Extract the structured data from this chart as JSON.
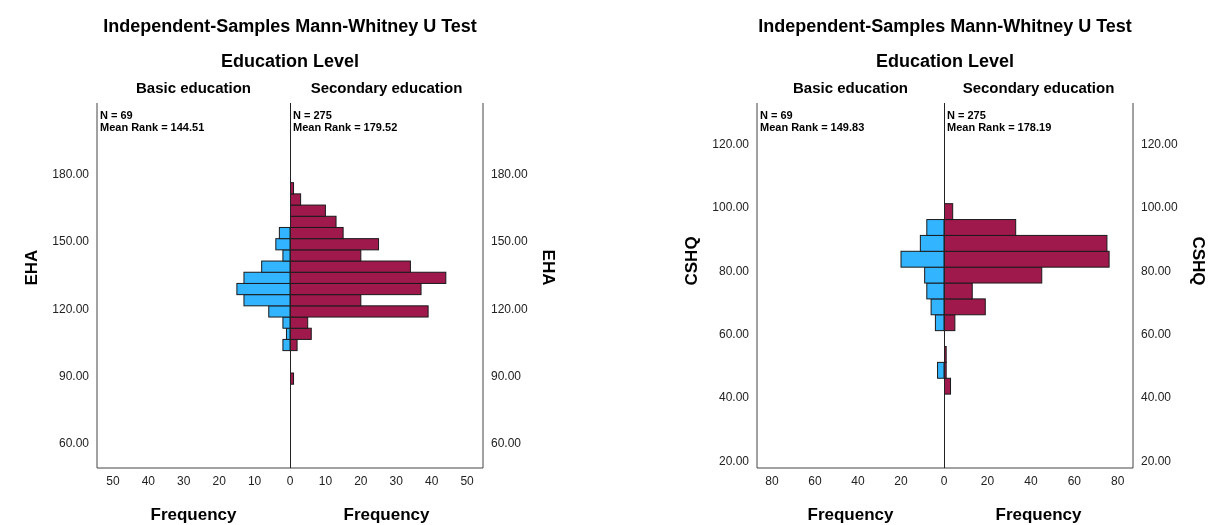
{
  "chart_data": [
    {
      "type": "histogram",
      "orientation": "horizontal",
      "title": "Independent-Samples Mann-Whitney U Test",
      "subtitle": "Education Level",
      "ylabel": "EHA",
      "xlabel": "Frequency",
      "bins": [
        86.3,
        91.3,
        96.3,
        101.3,
        106.3,
        111.3,
        116.3,
        121.3,
        126.3,
        131.3,
        136.3,
        141.3,
        146.3,
        151.3,
        156.3,
        161.3,
        166.3,
        171.3,
        176.3
      ],
      "series": [
        {
          "name": "Basic education",
          "color": "#33b4ff",
          "values": [
            0,
            0,
            0,
            2,
            1,
            2,
            6,
            13,
            15,
            13,
            8,
            2,
            4,
            3,
            0,
            0,
            0,
            0
          ]
        }
      ],
      "xlim": [
        54.5,
        0
      ],
      "xticks": [
        50,
        40,
        30,
        20,
        10,
        0
      ],
      "ylim": [
        48.7,
        211.7
      ],
      "yticks": [
        {
          "value": 60,
          "label": "60.00"
        },
        {
          "value": 90,
          "label": "90.00"
        },
        {
          "value": 120,
          "label": "120.00"
        },
        {
          "value": 150,
          "label": "150.00"
        },
        {
          "value": 180,
          "label": "180.00"
        }
      ],
      "annotations": [
        "N = 69",
        "Mean Rank = 144.51"
      ]
    },
    {
      "type": "histogram",
      "orientation": "horizontal",
      "ylabel": "EHA",
      "xlabel": "Frequency",
      "bins": [
        86.3,
        91.3,
        96.3,
        101.3,
        106.3,
        111.3,
        116.3,
        121.3,
        126.3,
        131.3,
        136.3,
        141.3,
        146.3,
        151.3,
        156.3,
        161.3,
        166.3,
        171.3,
        176.3
      ],
      "series": [
        {
          "name": "Secondary education",
          "color": "#a0194c",
          "values": [
            1,
            0,
            0,
            2,
            6,
            5,
            39,
            20,
            37,
            44,
            34,
            20,
            25,
            15,
            13,
            10,
            3,
            1
          ]
        }
      ],
      "xlim": [
        0,
        54.5
      ],
      "xticks": [
        10,
        20,
        30,
        40,
        50
      ],
      "ylim": [
        48.7,
        211.7
      ],
      "yticks": [
        {
          "value": 60,
          "label": "60.00"
        },
        {
          "value": 90,
          "label": "90.00"
        },
        {
          "value": 120,
          "label": "120.00"
        },
        {
          "value": 150,
          "label": "150.00"
        },
        {
          "value": 180,
          "label": "180.00"
        }
      ],
      "annotations": [
        "N = 275",
        "Mean Rank = 179.52"
      ]
    },
    {
      "type": "histogram",
      "orientation": "horizontal",
      "title": "Independent-Samples Mann-Whitney U Test",
      "subtitle": "Education Level",
      "ylabel": "CSHQ",
      "xlabel": "Frequency",
      "bins": [
        41,
        46,
        51,
        56,
        61,
        66,
        71,
        76,
        81,
        86,
        91,
        96,
        101
      ],
      "series": [
        {
          "name": "Basic education",
          "color": "#33b4ff",
          "values": [
            0,
            3,
            0,
            0,
            4,
            6,
            8,
            9,
            20,
            11,
            8,
            0
          ]
        }
      ],
      "xlim": [
        87,
        0
      ],
      "xticks": [
        80,
        60,
        40,
        20,
        0
      ],
      "ylim": [
        17.7,
        132.7
      ],
      "yticks": [
        {
          "value": 20,
          "label": "20.00"
        },
        {
          "value": 40,
          "label": "40.00"
        },
        {
          "value": 60,
          "label": "60.00"
        },
        {
          "value": 80,
          "label": "80.00"
        },
        {
          "value": 100,
          "label": "100.00"
        },
        {
          "value": 120,
          "label": "120.00"
        }
      ],
      "annotations": [
        "N = 69",
        "Mean Rank = 149.83"
      ]
    },
    {
      "type": "histogram",
      "orientation": "horizontal",
      "ylabel": "CSHQ",
      "xlabel": "Frequency",
      "bins": [
        41,
        46,
        51,
        56,
        61,
        66,
        71,
        76,
        81,
        86,
        91,
        96,
        101
      ],
      "series": [
        {
          "name": "Secondary education",
          "color": "#a0194c",
          "values": [
            3,
            1,
            1,
            0,
            5,
            19,
            13,
            45,
            76,
            75,
            33,
            4
          ]
        }
      ],
      "xlim": [
        0,
        87
      ],
      "xticks": [
        20,
        40,
        60,
        80
      ],
      "ylim": [
        17.7,
        132.7
      ],
      "yticks": [
        {
          "value": 20,
          "label": "20.00"
        },
        {
          "value": 40,
          "label": "40.00"
        },
        {
          "value": 60,
          "label": "60.00"
        },
        {
          "value": 80,
          "label": "80.00"
        },
        {
          "value": 100,
          "label": "100.00"
        },
        {
          "value": 120,
          "label": "120.00"
        }
      ],
      "annotations": [
        "N = 275",
        "Mean Rank = 178.19"
      ]
    }
  ]
}
